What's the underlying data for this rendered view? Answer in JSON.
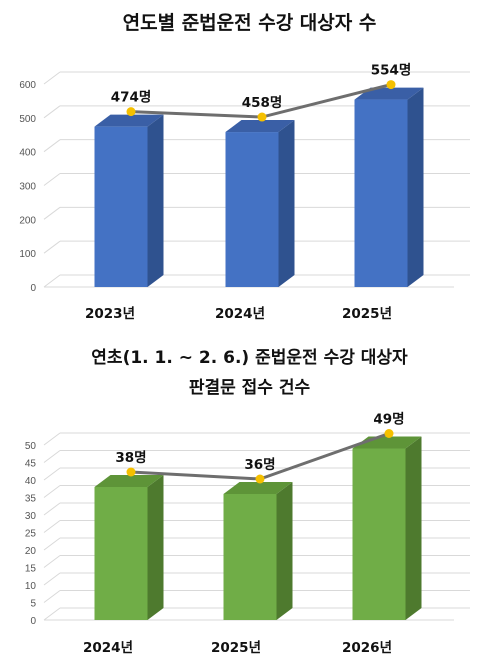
{
  "charts": [
    {
      "title_line1": "연도별 준법운전 수강 대상자 수",
      "title_line2": "",
      "chart_data": {
        "type": "bar",
        "categories": [
          "2023년",
          "2024년",
          "2025년"
        ],
        "values": [
          474,
          458,
          554
        ],
        "data_labels": [
          "474명",
          "458명",
          "554명"
        ],
        "y_ticks": [
          "0",
          "100",
          "200",
          "300",
          "400",
          "500",
          "600"
        ],
        "ylim": [
          0,
          600
        ],
        "grid": true,
        "bar_color": "#4472C4",
        "bar_side_color": "#2F528F",
        "bar_top_color": "#3A5FA6",
        "line_color": "#6e6e6e",
        "marker_color": "#F5C000"
      }
    },
    {
      "title_line1": "연초(1. 1. ~ 2. 6.) 준법운전 수강 대상자",
      "title_line2": "판결문 접수 건수",
      "chart_data": {
        "type": "bar",
        "categories": [
          "2024년",
          "2025년",
          "2026년"
        ],
        "values": [
          38,
          36,
          49
        ],
        "data_labels": [
          "38명",
          "36명",
          "49명"
        ],
        "y_ticks": [
          "0",
          "5",
          "10",
          "15",
          "20",
          "25",
          "30",
          "35",
          "40",
          "45",
          "50"
        ],
        "ylim": [
          0,
          50
        ],
        "grid": true,
        "bar_color": "#70AD47",
        "bar_side_color": "#4E7A2E",
        "bar_top_color": "#5E9438",
        "line_color": "#6e6e6e",
        "marker_color": "#F5C000"
      }
    }
  ]
}
